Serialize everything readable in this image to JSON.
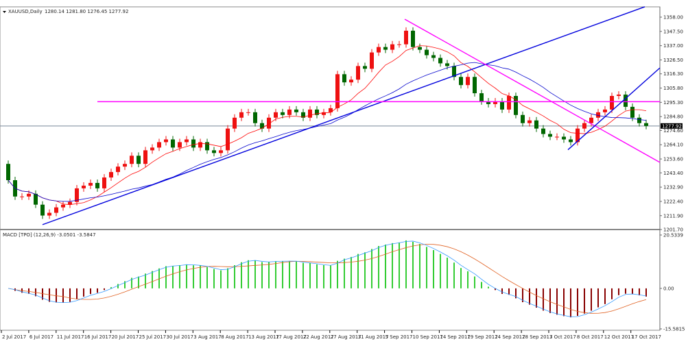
{
  "header": {
    "symbol": "XAUUSD,Daily",
    "ohlc": "1280.14 1281.80 1276.45 1277.92"
  },
  "macd_header": {
    "label": "MACD [TPO] (12,26,9) -3.0501 -3.5847"
  },
  "colors": {
    "up": "#ee1111",
    "down": "#006600",
    "ma_fast": "#ff0000",
    "ma_slow": "#0000cc",
    "trend_blue": "#0000dd",
    "trend_magenta": "#ff00ff",
    "macd_pos": "#33cc33",
    "macd_neg": "#880000",
    "signal": "#e06020",
    "macd_line": "#3399ff"
  },
  "chart_data": {
    "type": "candlestick",
    "title": "XAUUSD,Daily",
    "ylim": [
      1201.7,
      1358.0
    ],
    "price_ticks": [
      "1358.00",
      "1347.50",
      "1337.00",
      "1326.50",
      "1316.30",
      "1305.80",
      "1295.30",
      "1284.80",
      "1274.60",
      "1264.10",
      "1253.60",
      "1243.40",
      "1232.90",
      "1222.40",
      "1211.90",
      "1201.70"
    ],
    "current_price": "1277.92",
    "x_labels": [
      "2 Jul 2017",
      "6 Jul 2017",
      "11 Jul 2017",
      "16 Jul 2017",
      "20 Jul 2017",
      "25 Jul 2017",
      "30 Jul 2017",
      "3 Aug 2017",
      "8 Aug 2017",
      "13 Aug 2017",
      "17 Aug 2017",
      "22 Aug 2017",
      "27 Aug 2017",
      "31 Aug 2017",
      "5 Sep 2017",
      "10 Sep 2017",
      "14 Sep 2017",
      "19 Sep 2017",
      "24 Sep 2017",
      "28 Sep 2017",
      "3 Oct 2017",
      "8 Oct 2017",
      "12 Oct 2017",
      "17 Oct 2017"
    ],
    "open_first": 1250,
    "closes": [
      1238,
      1226,
      1226,
      1228,
      1220,
      1212,
      1214,
      1218,
      1220,
      1222,
      1232,
      1234,
      1236,
      1232,
      1240,
      1244,
      1248,
      1250,
      1256,
      1250,
      1260,
      1262,
      1266,
      1268,
      1262,
      1266,
      1268,
      1262,
      1266,
      1260,
      1258,
      1260,
      1276,
      1284,
      1288,
      1288,
      1280,
      1276,
      1284,
      1288,
      1286,
      1290,
      1288,
      1284,
      1290,
      1286,
      1288,
      1291,
      1316,
      1310,
      1312,
      1322,
      1320,
      1332,
      1336,
      1334,
      1338,
      1338,
      1348,
      1336,
      1334,
      1330,
      1328,
      1324,
      1322,
      1314,
      1308,
      1314,
      1302,
      1296,
      1294,
      1296,
      1290,
      1300,
      1286,
      1280,
      1282,
      1276,
      1272,
      1270,
      1270,
      1268,
      1266,
      1276,
      1280,
      1284,
      1288,
      1290,
      1300,
      1301,
      1292,
      1284,
      1280,
      1277.92
    ],
    "trendlines": [
      {
        "name": "support-blue",
        "color": "#0000dd",
        "from": [
          5,
          1205.3
        ],
        "to": [
          92.8,
          1365.6
        ]
      },
      {
        "name": "resistance-horizontal",
        "color": "#ff00ff",
        "from": [
          13,
          1295.8
        ],
        "to": [
          96,
          1295.8
        ]
      },
      {
        "name": "downtrend-magenta",
        "color": "#ff00ff",
        "from": [
          57.8,
          1356.5
        ],
        "to": [
          96,
          1248.3
        ]
      },
      {
        "name": "short-uptrend-blue",
        "color": "#0000dd",
        "from": [
          81.6,
          1260.4
        ],
        "to": [
          96,
          1325.1
        ]
      }
    ],
    "ma_periods": [
      8,
      21
    ],
    "macd": {
      "params": [
        12,
        26,
        9
      ],
      "ylim": [
        -15.5815,
        20.5339
      ],
      "ticks": [
        "20.5339",
        "0.00",
        "-15.5815"
      ]
    }
  }
}
